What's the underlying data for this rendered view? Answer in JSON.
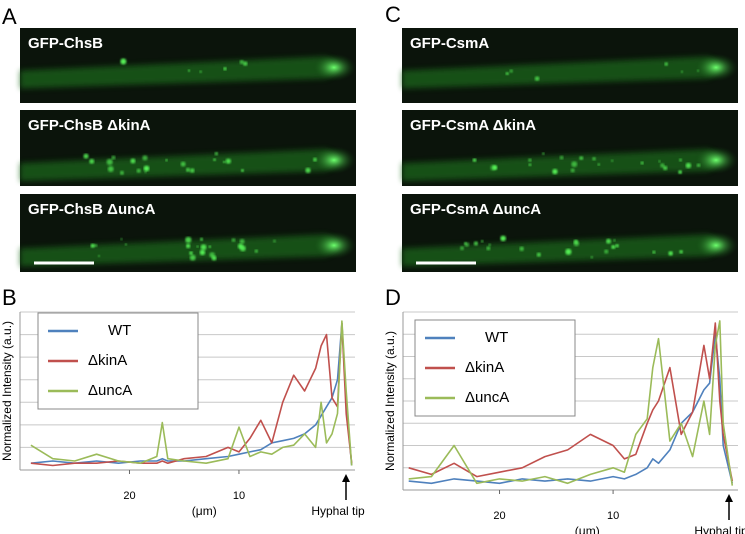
{
  "figure": {
    "panel_labels": [
      "A",
      "B",
      "C",
      "D"
    ],
    "images": [
      {
        "panel": "A",
        "labels": [
          "GFP-ChsB",
          "GFP-ChsB ΔkinA",
          "GFP-ChsB ΔuncA"
        ]
      },
      {
        "panel": "C",
        "labels": [
          "GFP-CsmA",
          "GFP-CsmA ΔkinA",
          "GFP-CsmA ΔuncA"
        ]
      }
    ]
  },
  "chart_data": [
    {
      "type": "line",
      "y_label": "Normalized Intensity (a.u.)",
      "x_label": "(μm)",
      "annotation": "Hyphal tip",
      "x": [
        29,
        27,
        25,
        23,
        21,
        19,
        17.5,
        17,
        16.5,
        15,
        13,
        11,
        10,
        9,
        8,
        7,
        6,
        5,
        4,
        3,
        2.5,
        2,
        1.5,
        1,
        0.6,
        0.2,
        -0.3
      ],
      "xlim": [
        30,
        -0.6
      ],
      "xticks": [
        20,
        10
      ],
      "ylim": [
        0,
        7
      ],
      "ygrid": [
        1,
        2,
        3,
        4,
        5,
        6,
        7
      ],
      "legend": "upper left",
      "series": [
        {
          "name": "WT",
          "color": "#4f81bd",
          "values": [
            0.3,
            0.4,
            0.3,
            0.4,
            0.3,
            0.4,
            0.4,
            0.5,
            0.4,
            0.4,
            0.5,
            0.6,
            0.7,
            0.8,
            0.9,
            1.2,
            1.3,
            1.4,
            1.6,
            2.0,
            2.4,
            2.8,
            3.2,
            4.0,
            6.5,
            3.0,
            0.2
          ]
        },
        {
          "name": "ΔkinA",
          "color": "#c0504d",
          "values": [
            0.3,
            0.2,
            0.3,
            0.3,
            0.4,
            0.3,
            0.3,
            0.4,
            0.3,
            0.5,
            0.6,
            1.0,
            0.8,
            1.4,
            2.2,
            1.2,
            3.0,
            4.2,
            3.5,
            4.5,
            5.5,
            6.0,
            3.2,
            2.8,
            6.5,
            2.5,
            0.3
          ]
        },
        {
          "name": "ΔuncA",
          "color": "#9bbb59",
          "values": [
            1.1,
            0.5,
            0.4,
            0.7,
            0.4,
            0.3,
            0.6,
            2.1,
            0.5,
            0.4,
            0.3,
            0.5,
            1.9,
            0.6,
            0.8,
            0.7,
            1.0,
            1.1,
            1.6,
            1.0,
            3.0,
            1.2,
            1.6,
            2.5,
            6.6,
            3.5,
            0.2
          ]
        }
      ]
    },
    {
      "type": "line",
      "y_label": "Normalized Intensity (a.u.)",
      "x_label": "(μm)",
      "annotation": "Hyphal tip",
      "x": [
        28,
        26,
        24,
        22,
        20,
        18,
        16,
        14,
        12,
        10,
        9,
        8,
        7,
        6.5,
        6,
        5,
        4,
        3,
        2,
        1.5,
        1,
        0.6,
        0.3,
        -0.5
      ],
      "xlim": [
        28.5,
        -1
      ],
      "xticks": [
        20,
        10
      ],
      "ylim": [
        0,
        8
      ],
      "ygrid": [
        1,
        2,
        3,
        4,
        5,
        6,
        7,
        8
      ],
      "legend": "upper left",
      "series": [
        {
          "name": "WT",
          "color": "#4f81bd",
          "values": [
            0.4,
            0.3,
            0.5,
            0.4,
            0.3,
            0.5,
            0.4,
            0.5,
            0.4,
            0.6,
            0.5,
            0.7,
            1.0,
            1.4,
            1.2,
            1.8,
            3.0,
            3.5,
            4.5,
            4.8,
            7.0,
            5.0,
            2.0,
            0.3
          ]
        },
        {
          "name": "ΔkinA",
          "color": "#c0504d",
          "values": [
            1.0,
            0.7,
            1.2,
            0.6,
            0.8,
            1.0,
            1.5,
            1.8,
            2.5,
            2.0,
            1.4,
            1.6,
            3.0,
            3.6,
            4.0,
            5.5,
            2.5,
            3.5,
            6.5,
            5.0,
            7.5,
            4.0,
            2.5,
            0.4
          ]
        },
        {
          "name": "ΔuncA",
          "color": "#9bbb59",
          "values": [
            0.5,
            0.6,
            2.0,
            0.3,
            0.5,
            0.4,
            0.6,
            0.3,
            0.7,
            1.0,
            0.8,
            2.5,
            3.2,
            5.5,
            6.8,
            2.2,
            3.0,
            1.5,
            4.0,
            2.5,
            6.5,
            7.6,
            3.0,
            0.2
          ]
        }
      ]
    }
  ]
}
